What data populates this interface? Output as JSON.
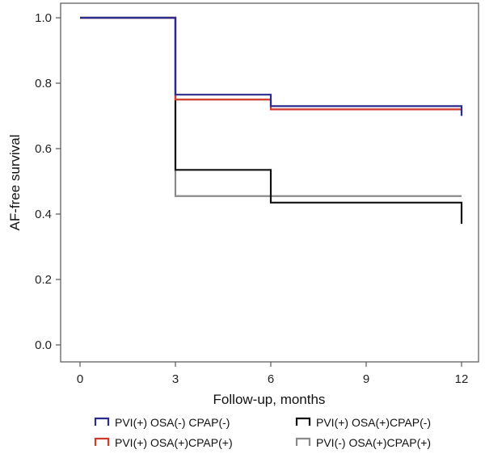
{
  "chart_data": {
    "type": "line",
    "subtype": "kaplan-meier step",
    "title": "",
    "xlabel": "Follow-up, months",
    "ylabel": "AF-free survival",
    "xlim": [
      0,
      12
    ],
    "ylim": [
      0,
      1
    ],
    "xticks": [
      0,
      3,
      6,
      9,
      12
    ],
    "xtick_labels": [
      "0",
      "3",
      "6",
      "9",
      "12"
    ],
    "yticks": [
      0,
      0.2,
      0.4,
      0.6,
      0.8,
      1.0
    ],
    "ytick_labels": [
      "0.0",
      "0.2",
      "0.4",
      "0.6",
      "0.8",
      "1.0"
    ],
    "grid": false,
    "legend_position": "bottom",
    "series": [
      {
        "name": "PVI(+) OSA(-) CPAP(-)",
        "color": "#2b2b8f",
        "steps": [
          {
            "x": 0,
            "y": 1.0
          },
          {
            "x": 3,
            "y": 0.765
          },
          {
            "x": 6,
            "y": 0.73
          },
          {
            "x": 12,
            "y": 0.73
          }
        ],
        "end_drop": 0.7
      },
      {
        "name": "PVI(+) OSA(+)CPAP(+)",
        "color": "#d03a2a",
        "steps": [
          {
            "x": 0,
            "y": 1.0
          },
          {
            "x": 3,
            "y": 0.75
          },
          {
            "x": 6,
            "y": 0.72
          },
          {
            "x": 12,
            "y": 0.72
          }
        ],
        "end_drop": 0.71
      },
      {
        "name": "PVI(+) OSA(+)CPAP(-)",
        "color": "#111111",
        "steps": [
          {
            "x": 0,
            "y": 1.0
          },
          {
            "x": 3,
            "y": 0.535
          },
          {
            "x": 6,
            "y": 0.435
          },
          {
            "x": 12,
            "y": 0.435
          }
        ],
        "end_drop": 0.37
      },
      {
        "name": "PVI(-) OSA(+)CPAP(+)",
        "color": "#8a8a8a",
        "steps": [
          {
            "x": 0,
            "y": 1.0
          },
          {
            "x": 3,
            "y": 0.455
          },
          {
            "x": 12,
            "y": 0.455
          }
        ],
        "end_drop": null
      }
    ]
  }
}
